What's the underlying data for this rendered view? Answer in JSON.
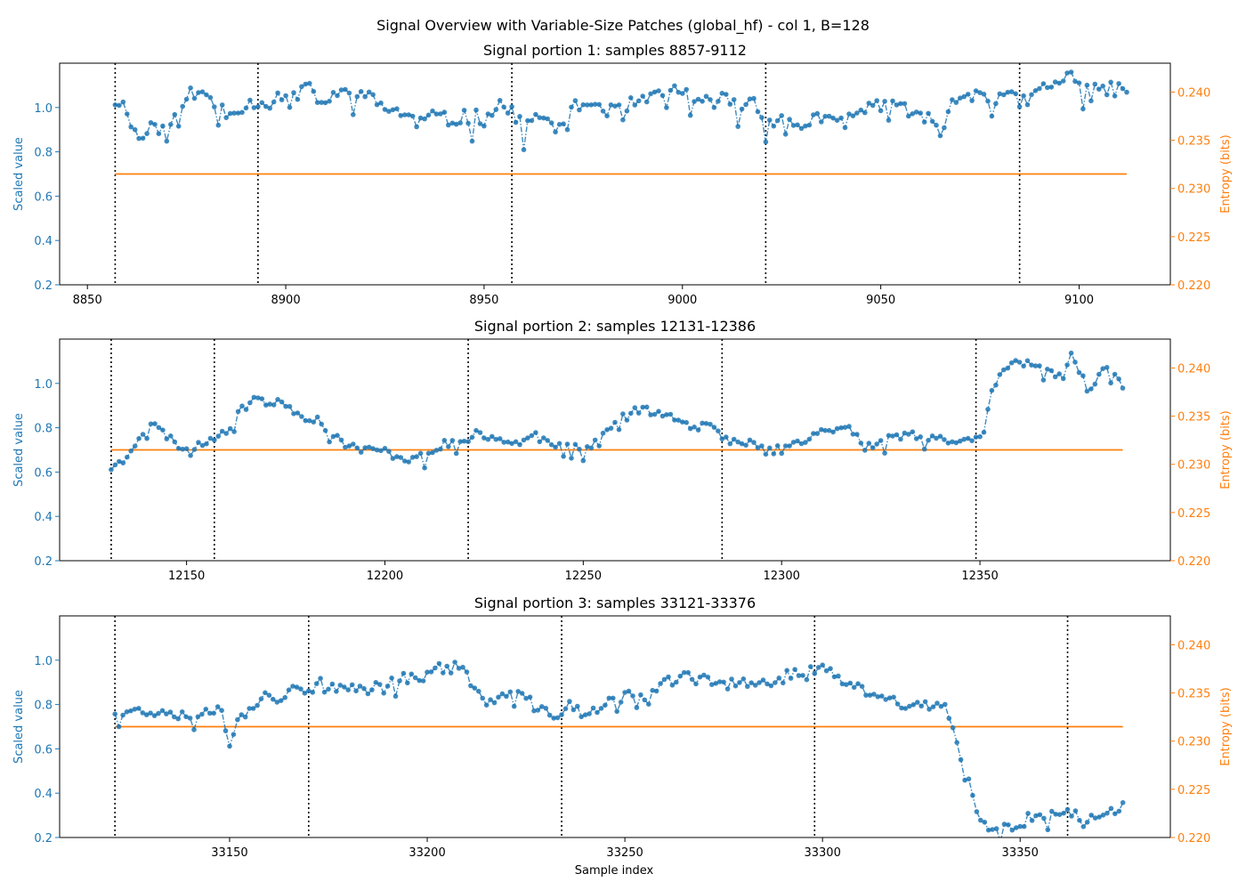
{
  "suptitle": "Signal Overview with Variable-Size Patches (global_hf) - col 1, B=128",
  "colors": {
    "signal": "#1f77b4",
    "entropy": "#ff7f0e",
    "boundary": "#000000"
  },
  "xlabel": "Sample index",
  "chart_data": [
    {
      "type": "line",
      "title": "Signal portion 1: samples 8857-9112",
      "ylabel_left": "Scaled value",
      "ylabel_right": "Entropy (bits)",
      "xlim": [
        8843,
        9123
      ],
      "ylim_left": [
        0.2,
        1.2
      ],
      "ylim_right": [
        0.22,
        0.243
      ],
      "xticks": [
        8850,
        8900,
        8950,
        9000,
        9050,
        9100
      ],
      "yticks_left": [
        "0.2",
        "0.4",
        "0.6",
        "0.8",
        "1.0"
      ],
      "yticks_right": [
        "0.220",
        "0.225",
        "0.230",
        "0.235",
        "0.240"
      ],
      "boundaries": [
        8857,
        8893,
        8957,
        9021,
        9085
      ],
      "entropy": {
        "x": [
          8857,
          9112
        ],
        "y": [
          0.2315,
          0.2315
        ]
      },
      "signal_anchors": [
        [
          8857,
          1.03
        ],
        [
          8860,
          1.0
        ],
        [
          8862,
          0.88
        ],
        [
          8864,
          0.86
        ],
        [
          8867,
          0.95
        ],
        [
          8870,
          0.92
        ],
        [
          8873,
          0.96
        ],
        [
          8875,
          1.07
        ],
        [
          8878,
          1.05
        ],
        [
          8880,
          1.06
        ],
        [
          8883,
          1.0
        ],
        [
          8886,
          0.98
        ],
        [
          8889,
          1.01
        ],
        [
          8892,
          1.02
        ],
        [
          8896,
          1.04
        ],
        [
          8900,
          1.05
        ],
        [
          8903,
          1.06
        ],
        [
          8906,
          1.08
        ],
        [
          8910,
          1.02
        ],
        [
          8914,
          1.06
        ],
        [
          8918,
          1.08
        ],
        [
          8921,
          1.04
        ],
        [
          8925,
          1.0
        ],
        [
          8929,
          0.98
        ],
        [
          8933,
          0.93
        ],
        [
          8937,
          0.96
        ],
        [
          8941,
          0.94
        ],
        [
          8945,
          0.96
        ],
        [
          8950,
          0.95
        ],
        [
          8954,
          1.02
        ],
        [
          8957,
          0.97
        ],
        [
          8960,
          0.92
        ],
        [
          8963,
          0.95
        ],
        [
          8967,
          0.93
        ],
        [
          8970,
          0.9
        ],
        [
          8973,
          1.0
        ],
        [
          8976,
          1.02
        ],
        [
          8980,
          1.0
        ],
        [
          8984,
          0.98
        ],
        [
          8988,
          1.02
        ],
        [
          8992,
          1.03
        ],
        [
          8996,
          1.07
        ],
        [
          9000,
          1.09
        ],
        [
          9003,
          1.0
        ],
        [
          9007,
          1.03
        ],
        [
          9010,
          1.04
        ],
        [
          9014,
          1.01
        ],
        [
          9018,
          1.03
        ],
        [
          9021,
          0.95
        ],
        [
          9025,
          0.94
        ],
        [
          9030,
          0.92
        ],
        [
          9034,
          0.96
        ],
        [
          9038,
          0.92
        ],
        [
          9042,
          0.95
        ],
        [
          9046,
          0.99
        ],
        [
          9050,
          1.02
        ],
        [
          9054,
          1.03
        ],
        [
          9058,
          0.95
        ],
        [
          9062,
          0.94
        ],
        [
          9066,
          0.97
        ],
        [
          9070,
          1.05
        ],
        [
          9074,
          1.07
        ],
        [
          9078,
          1.05
        ],
        [
          9082,
          1.05
        ],
        [
          9085,
          1.02
        ],
        [
          9088,
          1.04
        ],
        [
          9091,
          1.09
        ],
        [
          9094,
          1.1
        ],
        [
          9097,
          1.15
        ],
        [
          9100,
          1.1
        ],
        [
          9104,
          1.11
        ],
        [
          9108,
          1.08
        ],
        [
          9112,
          1.09
        ]
      ],
      "signal_noise": 0.035,
      "seed": 11
    },
    {
      "type": "line",
      "title": "Signal portion 2: samples 12131-12386",
      "ylabel_left": "Scaled value",
      "ylabel_right": "Entropy (bits)",
      "xlim": [
        12118,
        12398
      ],
      "ylim_left": [
        0.2,
        1.2
      ],
      "ylim_right": [
        0.22,
        0.243
      ],
      "xticks": [
        12150,
        12200,
        12250,
        12300,
        12350
      ],
      "yticks_left": [
        "0.2",
        "0.4",
        "0.6",
        "0.8",
        "1.0"
      ],
      "yticks_right": [
        "0.220",
        "0.225",
        "0.230",
        "0.235",
        "0.240"
      ],
      "boundaries": [
        12131,
        12157,
        12221,
        12285,
        12349
      ],
      "entropy": {
        "x": [
          12131,
          12386
        ],
        "y": [
          0.2315,
          0.2315
        ]
      },
      "signal_anchors": [
        [
          12131,
          0.62
        ],
        [
          12134,
          0.65
        ],
        [
          12138,
          0.76
        ],
        [
          12141,
          0.82
        ],
        [
          12144,
          0.78
        ],
        [
          12148,
          0.72
        ],
        [
          12151,
          0.69
        ],
        [
          12154,
          0.73
        ],
        [
          12157,
          0.76
        ],
        [
          12160,
          0.79
        ],
        [
          12164,
          0.88
        ],
        [
          12167,
          0.94
        ],
        [
          12171,
          0.91
        ],
        [
          12175,
          0.91
        ],
        [
          12179,
          0.85
        ],
        [
          12183,
          0.84
        ],
        [
          12187,
          0.76
        ],
        [
          12191,
          0.72
        ],
        [
          12195,
          0.7
        ],
        [
          12199,
          0.7
        ],
        [
          12203,
          0.67
        ],
        [
          12207,
          0.66
        ],
        [
          12211,
          0.68
        ],
        [
          12215,
          0.73
        ],
        [
          12219,
          0.73
        ],
        [
          12223,
          0.77
        ],
        [
          12227,
          0.76
        ],
        [
          12231,
          0.74
        ],
        [
          12235,
          0.76
        ],
        [
          12239,
          0.78
        ],
        [
          12243,
          0.72
        ],
        [
          12247,
          0.71
        ],
        [
          12251,
          0.7
        ],
        [
          12255,
          0.76
        ],
        [
          12259,
          0.84
        ],
        [
          12262,
          0.88
        ],
        [
          12266,
          0.88
        ],
        [
          12270,
          0.86
        ],
        [
          12274,
          0.85
        ],
        [
          12278,
          0.8
        ],
        [
          12282,
          0.82
        ],
        [
          12285,
          0.75
        ],
        [
          12289,
          0.73
        ],
        [
          12293,
          0.73
        ],
        [
          12297,
          0.72
        ],
        [
          12301,
          0.72
        ],
        [
          12305,
          0.74
        ],
        [
          12309,
          0.78
        ],
        [
          12313,
          0.79
        ],
        [
          12317,
          0.8
        ],
        [
          12320,
          0.74
        ],
        [
          12324,
          0.72
        ],
        [
          12328,
          0.76
        ],
        [
          12332,
          0.77
        ],
        [
          12336,
          0.76
        ],
        [
          12340,
          0.75
        ],
        [
          12344,
          0.74
        ],
        [
          12348,
          0.74
        ],
        [
          12351,
          0.79
        ],
        [
          12353,
          0.98
        ],
        [
          12356,
          1.07
        ],
        [
          12360,
          1.1
        ],
        [
          12364,
          1.08
        ],
        [
          12368,
          1.04
        ],
        [
          12371,
          1.02
        ],
        [
          12373,
          1.12
        ],
        [
          12376,
          1.03
        ],
        [
          12378,
          0.96
        ],
        [
          12381,
          1.07
        ],
        [
          12384,
          1.05
        ],
        [
          12386,
          0.98
        ]
      ],
      "signal_noise": 0.018,
      "seed": 23
    },
    {
      "type": "line",
      "title": "Signal portion 3: samples 33121-33376",
      "ylabel_left": "Scaled value",
      "ylabel_right": "Entropy (bits)",
      "xlim": [
        33107,
        33388
      ],
      "ylim_left": [
        0.2,
        1.2
      ],
      "ylim_right": [
        0.22,
        0.243
      ],
      "xticks": [
        33150,
        33200,
        33250,
        33300,
        33350
      ],
      "yticks_left": [
        "0.2",
        "0.4",
        "0.6",
        "0.8",
        "1.0"
      ],
      "yticks_right": [
        "0.220",
        "0.225",
        "0.230",
        "0.235",
        "0.240"
      ],
      "boundaries": [
        33121,
        33170,
        33234,
        33298,
        33362
      ],
      "entropy": {
        "x": [
          33121,
          33376
        ],
        "y": [
          0.2315,
          0.2315
        ]
      },
      "signal_anchors": [
        [
          33121,
          0.77
        ],
        [
          33125,
          0.78
        ],
        [
          33129,
          0.76
        ],
        [
          33133,
          0.78
        ],
        [
          33137,
          0.76
        ],
        [
          33141,
          0.75
        ],
        [
          33145,
          0.77
        ],
        [
          33148,
          0.78
        ],
        [
          33150,
          0.62
        ],
        [
          33152,
          0.75
        ],
        [
          33156,
          0.77
        ],
        [
          33159,
          0.87
        ],
        [
          33163,
          0.82
        ],
        [
          33167,
          0.9
        ],
        [
          33170,
          0.84
        ],
        [
          33173,
          0.9
        ],
        [
          33177,
          0.86
        ],
        [
          33181,
          0.88
        ],
        [
          33185,
          0.87
        ],
        [
          33189,
          0.9
        ],
        [
          33193,
          0.92
        ],
        [
          33197,
          0.92
        ],
        [
          33201,
          0.97
        ],
        [
          33205,
          0.96
        ],
        [
          33208,
          0.98
        ],
        [
          33212,
          0.87
        ],
        [
          33216,
          0.8
        ],
        [
          33220,
          0.85
        ],
        [
          33224,
          0.84
        ],
        [
          33228,
          0.78
        ],
        [
          33232,
          0.74
        ],
        [
          33236,
          0.81
        ],
        [
          33240,
          0.74
        ],
        [
          33244,
          0.79
        ],
        [
          33248,
          0.82
        ],
        [
          33252,
          0.86
        ],
        [
          33256,
          0.82
        ],
        [
          33260,
          0.9
        ],
        [
          33264,
          0.92
        ],
        [
          33268,
          0.93
        ],
        [
          33272,
          0.9
        ],
        [
          33276,
          0.89
        ],
        [
          33280,
          0.9
        ],
        [
          33284,
          0.91
        ],
        [
          33288,
          0.9
        ],
        [
          33292,
          0.94
        ],
        [
          33296,
          0.95
        ],
        [
          33300,
          0.96
        ],
        [
          33303,
          0.94
        ],
        [
          33307,
          0.88
        ],
        [
          33311,
          0.86
        ],
        [
          33315,
          0.84
        ],
        [
          33319,
          0.8
        ],
        [
          33323,
          0.8
        ],
        [
          33327,
          0.81
        ],
        [
          33331,
          0.78
        ],
        [
          33334,
          0.62
        ],
        [
          33337,
          0.45
        ],
        [
          33340,
          0.27
        ],
        [
          33343,
          0.22
        ],
        [
          33347,
          0.25
        ],
        [
          33350,
          0.26
        ],
        [
          33353,
          0.3
        ],
        [
          33357,
          0.31
        ],
        [
          33361,
          0.31
        ],
        [
          33365,
          0.3
        ],
        [
          33369,
          0.28
        ],
        [
          33373,
          0.31
        ],
        [
          33376,
          0.36
        ]
      ],
      "signal_noise": 0.025,
      "seed": 37
    }
  ]
}
